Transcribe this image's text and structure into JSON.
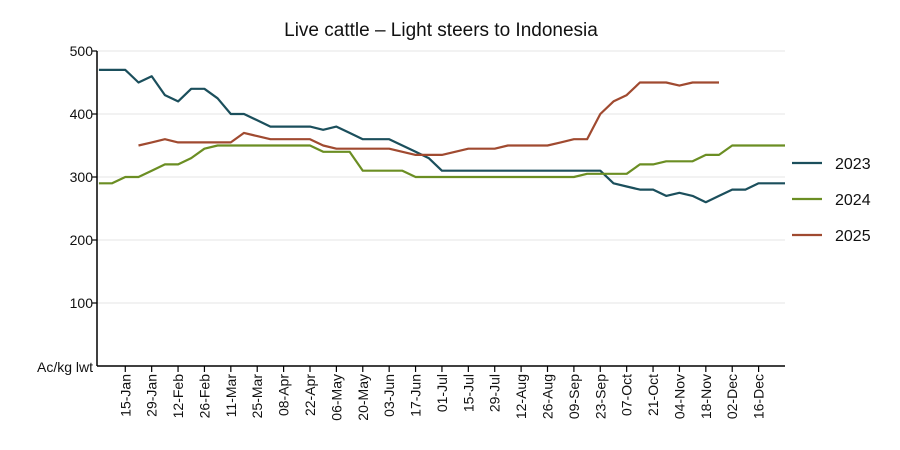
{
  "chart_data": {
    "type": "line",
    "title": "Live cattle – Light steers to Indonesia",
    "ylabel": "Ac/kg lwt",
    "xlabel": "",
    "ylim": [
      0,
      500
    ],
    "yticks": [
      100,
      200,
      300,
      400,
      500
    ],
    "grid": "horizontal",
    "legend_position": "right",
    "x_tick_labels": [
      "15-Jan",
      "29-Jan",
      "12-Feb",
      "26-Feb",
      "11-Mar",
      "25-Mar",
      "08-Apr",
      "22-Apr",
      "06-May",
      "20-May",
      "03-Jun",
      "17-Jun",
      "01-Jul",
      "15-Jul",
      "29-Jul",
      "12-Aug",
      "26-Aug",
      "09-Sep",
      "23-Sep",
      "07-Oct",
      "21-Oct",
      "04-Nov",
      "18-Nov",
      "02-Dec",
      "16-Dec"
    ],
    "x_tick_days": [
      15,
      29,
      43,
      57,
      71,
      85,
      99,
      113,
      127,
      141,
      155,
      169,
      183,
      197,
      211,
      225,
      239,
      253,
      267,
      281,
      295,
      309,
      323,
      337,
      351
    ],
    "x_range_days": [
      0,
      365
    ],
    "series": [
      {
        "name": "2023",
        "color": "#1b4f5c",
        "points": [
          [
            1,
            470
          ],
          [
            8,
            470
          ],
          [
            15,
            470
          ],
          [
            22,
            450
          ],
          [
            29,
            460
          ],
          [
            36,
            430
          ],
          [
            43,
            420
          ],
          [
            50,
            440
          ],
          [
            57,
            440
          ],
          [
            64,
            425
          ],
          [
            71,
            400
          ],
          [
            78,
            400
          ],
          [
            85,
            390
          ],
          [
            92,
            380
          ],
          [
            99,
            380
          ],
          [
            106,
            380
          ],
          [
            113,
            380
          ],
          [
            120,
            375
          ],
          [
            127,
            380
          ],
          [
            134,
            370
          ],
          [
            141,
            360
          ],
          [
            148,
            360
          ],
          [
            155,
            360
          ],
          [
            162,
            350
          ],
          [
            169,
            340
          ],
          [
            176,
            330
          ],
          [
            183,
            310
          ],
          [
            190,
            310
          ],
          [
            197,
            310
          ],
          [
            204,
            310
          ],
          [
            211,
            310
          ],
          [
            218,
            310
          ],
          [
            225,
            310
          ],
          [
            232,
            310
          ],
          [
            239,
            310
          ],
          [
            246,
            310
          ],
          [
            253,
            310
          ],
          [
            260,
            310
          ],
          [
            267,
            310
          ],
          [
            274,
            290
          ],
          [
            281,
            285
          ],
          [
            288,
            280
          ],
          [
            295,
            280
          ],
          [
            302,
            270
          ],
          [
            309,
            275
          ],
          [
            316,
            270
          ],
          [
            323,
            260
          ],
          [
            330,
            270
          ],
          [
            337,
            280
          ],
          [
            344,
            280
          ],
          [
            351,
            290
          ],
          [
            358,
            290
          ],
          [
            365,
            290
          ]
        ]
      },
      {
        "name": "2024",
        "color": "#6b8e23",
        "points": [
          [
            1,
            290
          ],
          [
            8,
            290
          ],
          [
            15,
            300
          ],
          [
            22,
            300
          ],
          [
            29,
            310
          ],
          [
            36,
            320
          ],
          [
            43,
            320
          ],
          [
            50,
            330
          ],
          [
            57,
            345
          ],
          [
            64,
            350
          ],
          [
            71,
            350
          ],
          [
            78,
            350
          ],
          [
            85,
            350
          ],
          [
            92,
            350
          ],
          [
            99,
            350
          ],
          [
            106,
            350
          ],
          [
            113,
            350
          ],
          [
            120,
            340
          ],
          [
            127,
            340
          ],
          [
            134,
            340
          ],
          [
            141,
            310
          ],
          [
            148,
            310
          ],
          [
            155,
            310
          ],
          [
            162,
            310
          ],
          [
            169,
            300
          ],
          [
            176,
            300
          ],
          [
            183,
            300
          ],
          [
            190,
            300
          ],
          [
            197,
            300
          ],
          [
            204,
            300
          ],
          [
            211,
            300
          ],
          [
            218,
            300
          ],
          [
            225,
            300
          ],
          [
            232,
            300
          ],
          [
            239,
            300
          ],
          [
            246,
            300
          ],
          [
            253,
            300
          ],
          [
            260,
            305
          ],
          [
            267,
            305
          ],
          [
            274,
            305
          ],
          [
            281,
            305
          ],
          [
            288,
            320
          ],
          [
            295,
            320
          ],
          [
            302,
            325
          ],
          [
            309,
            325
          ],
          [
            316,
            325
          ],
          [
            323,
            335
          ],
          [
            330,
            335
          ],
          [
            337,
            350
          ],
          [
            344,
            350
          ],
          [
            351,
            350
          ],
          [
            358,
            350
          ],
          [
            365,
            350
          ]
        ]
      },
      {
        "name": "2025",
        "color": "#a04a30",
        "points": [
          [
            22,
            350
          ],
          [
            29,
            355
          ],
          [
            36,
            360
          ],
          [
            43,
            355
          ],
          [
            50,
            355
          ],
          [
            57,
            355
          ],
          [
            64,
            355
          ],
          [
            71,
            355
          ],
          [
            78,
            370
          ],
          [
            85,
            365
          ],
          [
            92,
            360
          ],
          [
            99,
            360
          ],
          [
            106,
            360
          ],
          [
            113,
            360
          ],
          [
            120,
            350
          ],
          [
            127,
            345
          ],
          [
            134,
            345
          ],
          [
            141,
            345
          ],
          [
            148,
            345
          ],
          [
            155,
            345
          ],
          [
            162,
            340
          ],
          [
            169,
            335
          ],
          [
            176,
            335
          ],
          [
            183,
            335
          ],
          [
            190,
            340
          ],
          [
            197,
            345
          ],
          [
            204,
            345
          ],
          [
            211,
            345
          ],
          [
            218,
            350
          ],
          [
            225,
            350
          ],
          [
            232,
            350
          ],
          [
            239,
            350
          ],
          [
            246,
            355
          ],
          [
            253,
            360
          ],
          [
            260,
            360
          ],
          [
            267,
            400
          ],
          [
            274,
            420
          ],
          [
            281,
            430
          ],
          [
            288,
            450
          ],
          [
            295,
            450
          ],
          [
            302,
            450
          ],
          [
            309,
            445
          ],
          [
            316,
            450
          ],
          [
            323,
            450
          ],
          [
            330,
            450
          ]
        ]
      }
    ]
  }
}
